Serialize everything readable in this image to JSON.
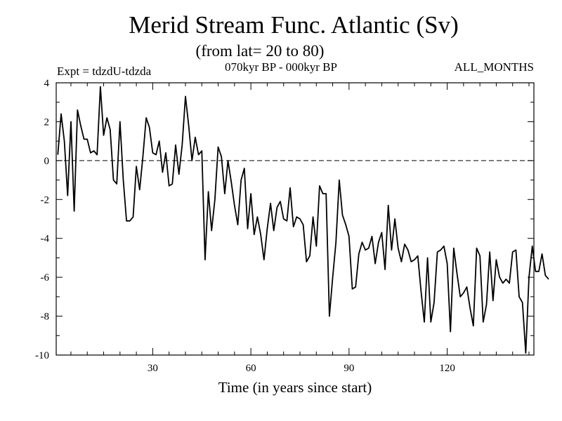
{
  "header": {
    "title": "Merid Stream Func. Atlantic (Sv)",
    "subtitle": "(from lat= 20 to 80)",
    "experiment": "Expt = tdzdU-tdzda",
    "period": "070kyr BP - 000kyr BP",
    "months": "ALL_MONTHS"
  },
  "colors": {
    "background": "#ffffff",
    "line": "#000000",
    "axis": "#000000"
  },
  "chart_data": {
    "type": "line",
    "title": "Merid Stream Func. Atlantic (Sv)",
    "subtitle": "(from lat= 20 to 80)",
    "xlabel": "Time (in years since start)",
    "ylabel": "",
    "xlim": [
      0.5,
      146.5
    ],
    "ylim": [
      -10,
      4
    ],
    "xticks": [
      30,
      60,
      90,
      120
    ],
    "xtick_labels": [
      "30",
      "60",
      "90",
      "120"
    ],
    "yticks": [
      4,
      2,
      0,
      -2,
      -4,
      -6,
      -8,
      -10
    ],
    "ytick_labels": [
      "4",
      "2",
      "0",
      "-2",
      "-4",
      "-6",
      "-8",
      "-10"
    ],
    "reference_line": {
      "y": 0,
      "style": "dashed"
    },
    "grid": false,
    "series": [
      {
        "name": "Merid Stream Func. Atlantic",
        "x_start": 1,
        "x_step": 1,
        "values": [
          0.3,
          2.4,
          1.0,
          -1.8,
          2.0,
          -2.6,
          2.6,
          1.8,
          1.1,
          1.1,
          0.4,
          0.5,
          0.3,
          3.8,
          1.3,
          2.2,
          1.6,
          -1.0,
          -1.2,
          2.0,
          -1.0,
          -3.1,
          -3.1,
          -2.9,
          -0.3,
          -1.5,
          0.2,
          2.2,
          1.7,
          0.4,
          0.3,
          1.0,
          -0.6,
          0.4,
          -1.3,
          -1.2,
          0.8,
          -0.7,
          0.8,
          3.3,
          1.8,
          0.0,
          1.2,
          0.3,
          0.5,
          -5.1,
          -1.6,
          -3.6,
          -2.0,
          0.7,
          0.2,
          -1.7,
          0.0,
          -1.1,
          -2.3,
          -3.3,
          -1.0,
          -0.4,
          -3.5,
          -1.7,
          -3.8,
          -2.9,
          -3.8,
          -5.1,
          -3.5,
          -2.2,
          -3.6,
          -2.4,
          -2.1,
          -3.0,
          -3.1,
          -1.4,
          -3.4,
          -2.9,
          -3.0,
          -3.3,
          -5.2,
          -4.9,
          -2.9,
          -4.4,
          -1.3,
          -1.7,
          -1.7,
          -8.0,
          -6.0,
          -4.2,
          -1.0,
          -2.8,
          -3.3,
          -3.9,
          -6.6,
          -6.5,
          -4.8,
          -4.2,
          -4.6,
          -4.5,
          -3.9,
          -5.3,
          -4.2,
          -3.7,
          -5.6,
          -2.3,
          -4.6,
          -3.0,
          -4.5,
          -5.2,
          -4.3,
          -4.6,
          -5.2,
          -5.1,
          -4.9,
          -6.7,
          -8.3,
          -5.0,
          -8.3,
          -7.3,
          -4.7,
          -4.6,
          -4.4,
          -5.3,
          -8.8,
          -4.5,
          -5.8,
          -7.0,
          -6.8,
          -6.5,
          -7.6,
          -8.5,
          -4.5,
          -4.9,
          -8.3,
          -7.4,
          -4.7,
          -7.2,
          -5.1,
          -6.0,
          -6.3,
          -6.1,
          -6.3,
          -4.7,
          -4.6,
          -7.0,
          -7.3,
          -9.9,
          -6.0,
          -4.4,
          -5.7,
          -5.7,
          -4.8,
          -5.9,
          -6.1
        ]
      }
    ]
  }
}
